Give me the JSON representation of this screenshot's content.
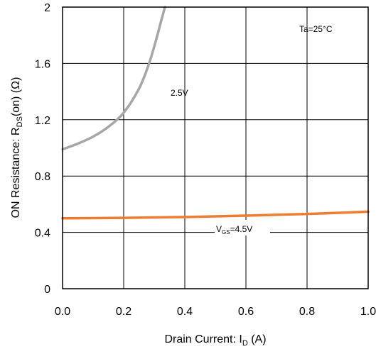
{
  "chart_data": {
    "type": "line",
    "xlabel_main": "Drain Current: I",
    "xlabel_sub": "D",
    "xlabel_unit": " (A)",
    "ylabel_main": "ON Resistance: R",
    "ylabel_sub": "DS",
    "ylabel_unit": "(on) (Ω)",
    "xlim": [
      0,
      1.0
    ],
    "ylim": [
      0,
      2
    ],
    "xticks": [
      0,
      0.2,
      0.4,
      0.6,
      0.8,
      1.0
    ],
    "xtick_labels": [
      "0.0",
      "0.2",
      "0.4",
      "0.6",
      "0.8",
      "1.0"
    ],
    "yticks": [
      0,
      0.4,
      0.8,
      1.2,
      1.6,
      2
    ],
    "ytick_labels": [
      "0",
      "0.4",
      "0.8",
      "1.2",
      "1.6",
      "2"
    ],
    "grid": true,
    "condition": "Ta=25°C",
    "series": [
      {
        "name": "2.5V",
        "color": "#a6a6a6",
        "x": [
          0,
          0.05,
          0.1,
          0.15,
          0.2,
          0.25,
          0.28,
          0.3,
          0.32,
          0.335
        ],
        "y": [
          0.99,
          1.03,
          1.08,
          1.15,
          1.25,
          1.42,
          1.58,
          1.72,
          1.88,
          2.0
        ]
      },
      {
        "name": "4.5V",
        "label_main": "V",
        "label_sub": "GS",
        "label_rest": "=4.5V",
        "color": "#ed7d31",
        "x": [
          0,
          0.2,
          0.4,
          0.6,
          0.8,
          1.0
        ],
        "y": [
          0.5,
          0.503,
          0.509,
          0.519,
          0.531,
          0.547
        ]
      }
    ]
  }
}
